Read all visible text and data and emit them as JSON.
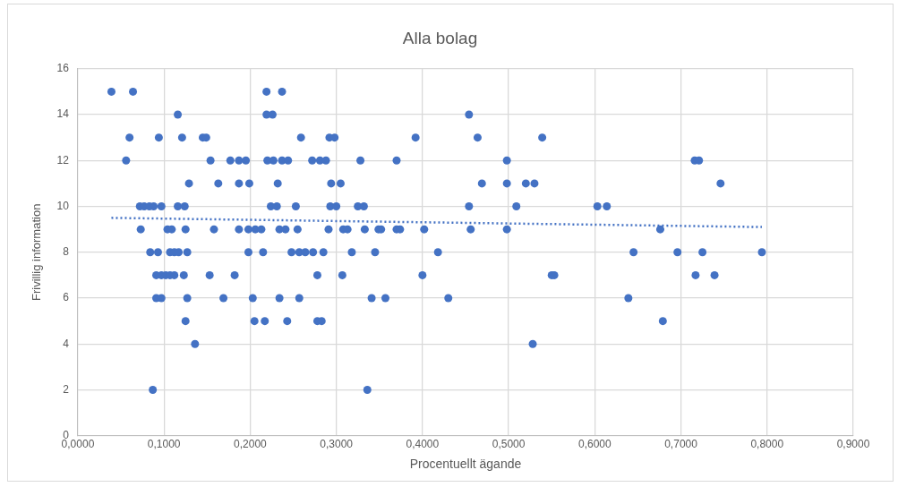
{
  "chart_data": {
    "type": "scatter",
    "title": "Alla bolag",
    "xlabel": "Procentuellt ägande",
    "ylabel": "Frivillig information",
    "xlim": [
      0,
      0.9
    ],
    "ylim": [
      0,
      16
    ],
    "xticks": [
      {
        "value": 0,
        "label": "0,0000"
      },
      {
        "value": 0.1,
        "label": "0,1000"
      },
      {
        "value": 0.2,
        "label": "0,2000"
      },
      {
        "value": 0.3,
        "label": "0,3000"
      },
      {
        "value": 0.4,
        "label": "0,4000"
      },
      {
        "value": 0.5,
        "label": "0,5000"
      },
      {
        "value": 0.6,
        "label": "0,6000"
      },
      {
        "value": 0.7,
        "label": "0,7000"
      },
      {
        "value": 0.8,
        "label": "0,8000"
      },
      {
        "value": 0.9,
        "label": "0,9000"
      }
    ],
    "yticks": [
      0,
      2,
      4,
      6,
      8,
      10,
      12,
      14,
      16
    ],
    "grid": true,
    "marker": "circle",
    "series": [
      {
        "color": "#4472c4",
        "x": [
          0.039,
          0.064,
          0.116,
          0.06,
          0.094,
          0.121,
          0.145,
          0.149,
          0.056,
          0.154,
          0.129,
          0.163,
          0.072,
          0.077,
          0.083,
          0.088,
          0.097,
          0.116,
          0.124,
          0.073,
          0.104,
          0.109,
          0.125,
          0.158,
          0.084,
          0.093,
          0.107,
          0.112,
          0.117,
          0.127,
          0.091,
          0.097,
          0.102,
          0.107,
          0.112,
          0.123,
          0.153,
          0.091,
          0.097,
          0.127,
          0.169,
          0.125,
          0.136,
          0.087,
          0.219,
          0.237,
          0.219,
          0.226,
          0.259,
          0.292,
          0.298,
          0.177,
          0.187,
          0.195,
          0.22,
          0.227,
          0.237,
          0.244,
          0.272,
          0.281,
          0.288,
          0.328,
          0.187,
          0.199,
          0.232,
          0.294,
          0.305,
          0.224,
          0.231,
          0.253,
          0.293,
          0.3,
          0.325,
          0.332,
          0.187,
          0.198,
          0.206,
          0.213,
          0.234,
          0.241,
          0.255,
          0.291,
          0.308,
          0.313,
          0.333,
          0.349,
          0.198,
          0.215,
          0.248,
          0.257,
          0.264,
          0.273,
          0.285,
          0.318,
          0.345,
          0.182,
          0.278,
          0.307,
          0.203,
          0.234,
          0.257,
          0.341,
          0.205,
          0.217,
          0.243,
          0.278,
          0.283,
          0.336,
          0.454,
          0.392,
          0.464,
          0.539,
          0.37,
          0.498,
          0.469,
          0.498,
          0.52,
          0.53,
          0.454,
          0.509,
          0.352,
          0.37,
          0.374,
          0.402,
          0.456,
          0.498,
          0.418,
          0.4,
          0.55,
          0.357,
          0.43,
          0.528,
          0.716,
          0.721,
          0.746,
          0.603,
          0.614,
          0.676,
          0.645,
          0.696,
          0.725,
          0.794,
          0.553,
          0.717,
          0.739,
          0.639,
          0.679
        ],
        "values": [
          15,
          15,
          14,
          13,
          13,
          13,
          13,
          13,
          12,
          12,
          11,
          11,
          10,
          10,
          10,
          10,
          10,
          10,
          10,
          9,
          9,
          9,
          9,
          9,
          8,
          8,
          8,
          8,
          8,
          8,
          7,
          7,
          7,
          7,
          7,
          7,
          7,
          6,
          6,
          6,
          6,
          5,
          4,
          2,
          15,
          15,
          14,
          14,
          13,
          13,
          13,
          12,
          12,
          12,
          12,
          12,
          12,
          12,
          12,
          12,
          12,
          12,
          11,
          11,
          11,
          11,
          11,
          10,
          10,
          10,
          10,
          10,
          10,
          10,
          9,
          9,
          9,
          9,
          9,
          9,
          9,
          9,
          9,
          9,
          9,
          9,
          8,
          8,
          8,
          8,
          8,
          8,
          8,
          8,
          8,
          7,
          7,
          7,
          6,
          6,
          6,
          6,
          5,
          5,
          5,
          5,
          5,
          2,
          14,
          13,
          13,
          13,
          12,
          12,
          11,
          11,
          11,
          11,
          10,
          10,
          9,
          9,
          9,
          9,
          9,
          9,
          8,
          7,
          7,
          6,
          6,
          4,
          12,
          12,
          11,
          10,
          10,
          9,
          8,
          8,
          8,
          8,
          7,
          7,
          7,
          6,
          5
        ]
      },
      {
        "type": "line",
        "color": "#4472c4",
        "line_style": "dotted",
        "marker": "none",
        "x": [
          0.039,
          0.794
        ],
        "values": [
          9.5,
          9.1
        ]
      }
    ]
  }
}
